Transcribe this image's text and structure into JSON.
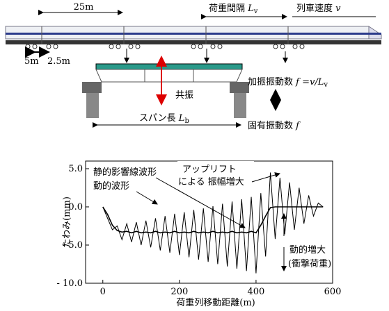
{
  "diagram": {
    "car_length": "25m",
    "load_interval": [
      "荷重間隔",
      "L",
      "v"
    ],
    "train_speed": [
      "列車速度",
      "v"
    ],
    "bogie_gap": "5m",
    "axle_gap": "2.5m",
    "resonance": "共振",
    "span": [
      "スパン長",
      "L",
      "b"
    ],
    "excitation": [
      "加振振動数",
      "f",
      "=v/",
      "L",
      "v"
    ],
    "natural": [
      "固有振動数",
      "f"
    ]
  },
  "chart_data": {
    "type": "line",
    "x_label": "荷重列移動距離(m)",
    "y_label": "たわみ(mm)",
    "annotations": [
      "アップリフト",
      "による 振幅増大",
      "動的増大",
      "(衝撃荷重)"
    ],
    "xlim": [
      -45,
      600
    ],
    "xticks": [
      0,
      200,
      400,
      600
    ],
    "ylim": [
      -10,
      6
    ],
    "yticks": [
      {
        "value": 5,
        "label": "5.0"
      },
      {
        "value": 0,
        "label": "0.0"
      },
      {
        "value": -5,
        "label": "- 5.0"
      },
      {
        "value": -10,
        "label": "- 10.0"
      }
    ],
    "x": [
      0,
      12.5,
      25,
      37.5,
      50,
      62.5,
      75,
      87.5,
      100,
      112.5,
      125,
      137.5,
      150,
      162.5,
      175,
      187.5,
      200,
      212.5,
      225,
      237.5,
      250,
      262.5,
      275,
      287.5,
      300,
      312.5,
      325,
      337.5,
      350,
      362.5,
      375,
      387.5,
      400,
      412.5,
      425,
      437.5,
      450,
      462.5,
      475,
      487.5,
      500,
      512.5,
      525,
      537.5,
      550,
      562.5,
      575
    ],
    "series": [
      {
        "name": "静的影響線波形",
        "color": "#000000",
        "values": [
          0,
          -1.0,
          -2.4,
          -3.1,
          -3.3,
          -3.2,
          -3.4,
          -3.2,
          -3.4,
          -3.3,
          -3.4,
          -3.2,
          -3.4,
          -3.3,
          -3.4,
          -3.2,
          -3.4,
          -3.3,
          -3.4,
          -3.2,
          -3.4,
          -3.3,
          -3.4,
          -3.2,
          -3.4,
          -3.3,
          -3.4,
          -3.2,
          -3.4,
          -3.3,
          -3.4,
          -3.2,
          -3.4,
          -2.4,
          -1.2,
          -0.1,
          0,
          0,
          0,
          0,
          0,
          0,
          0,
          0,
          0,
          0,
          0
        ]
      },
      {
        "name": "動的波形",
        "color": "#000000",
        "values": [
          0,
          -1.5,
          -3.0,
          -2.5,
          -4.3,
          -2.2,
          -4.6,
          -2.0,
          -5.0,
          -1.8,
          -5.3,
          -1.5,
          -5.7,
          -1.2,
          -6.0,
          -0.9,
          -6.3,
          -0.7,
          -6.6,
          -0.4,
          -6.9,
          -0.2,
          -7.2,
          0.1,
          -7.5,
          0.4,
          -7.8,
          0.7,
          -8.1,
          1.0,
          -8.4,
          1.3,
          -8.7,
          1.8,
          -6.5,
          4.5,
          -4.2,
          3.8,
          -3.6,
          3.2,
          -3.0,
          2.5,
          -2.2,
          1.5,
          -1.2,
          0.5,
          0
        ]
      }
    ]
  }
}
